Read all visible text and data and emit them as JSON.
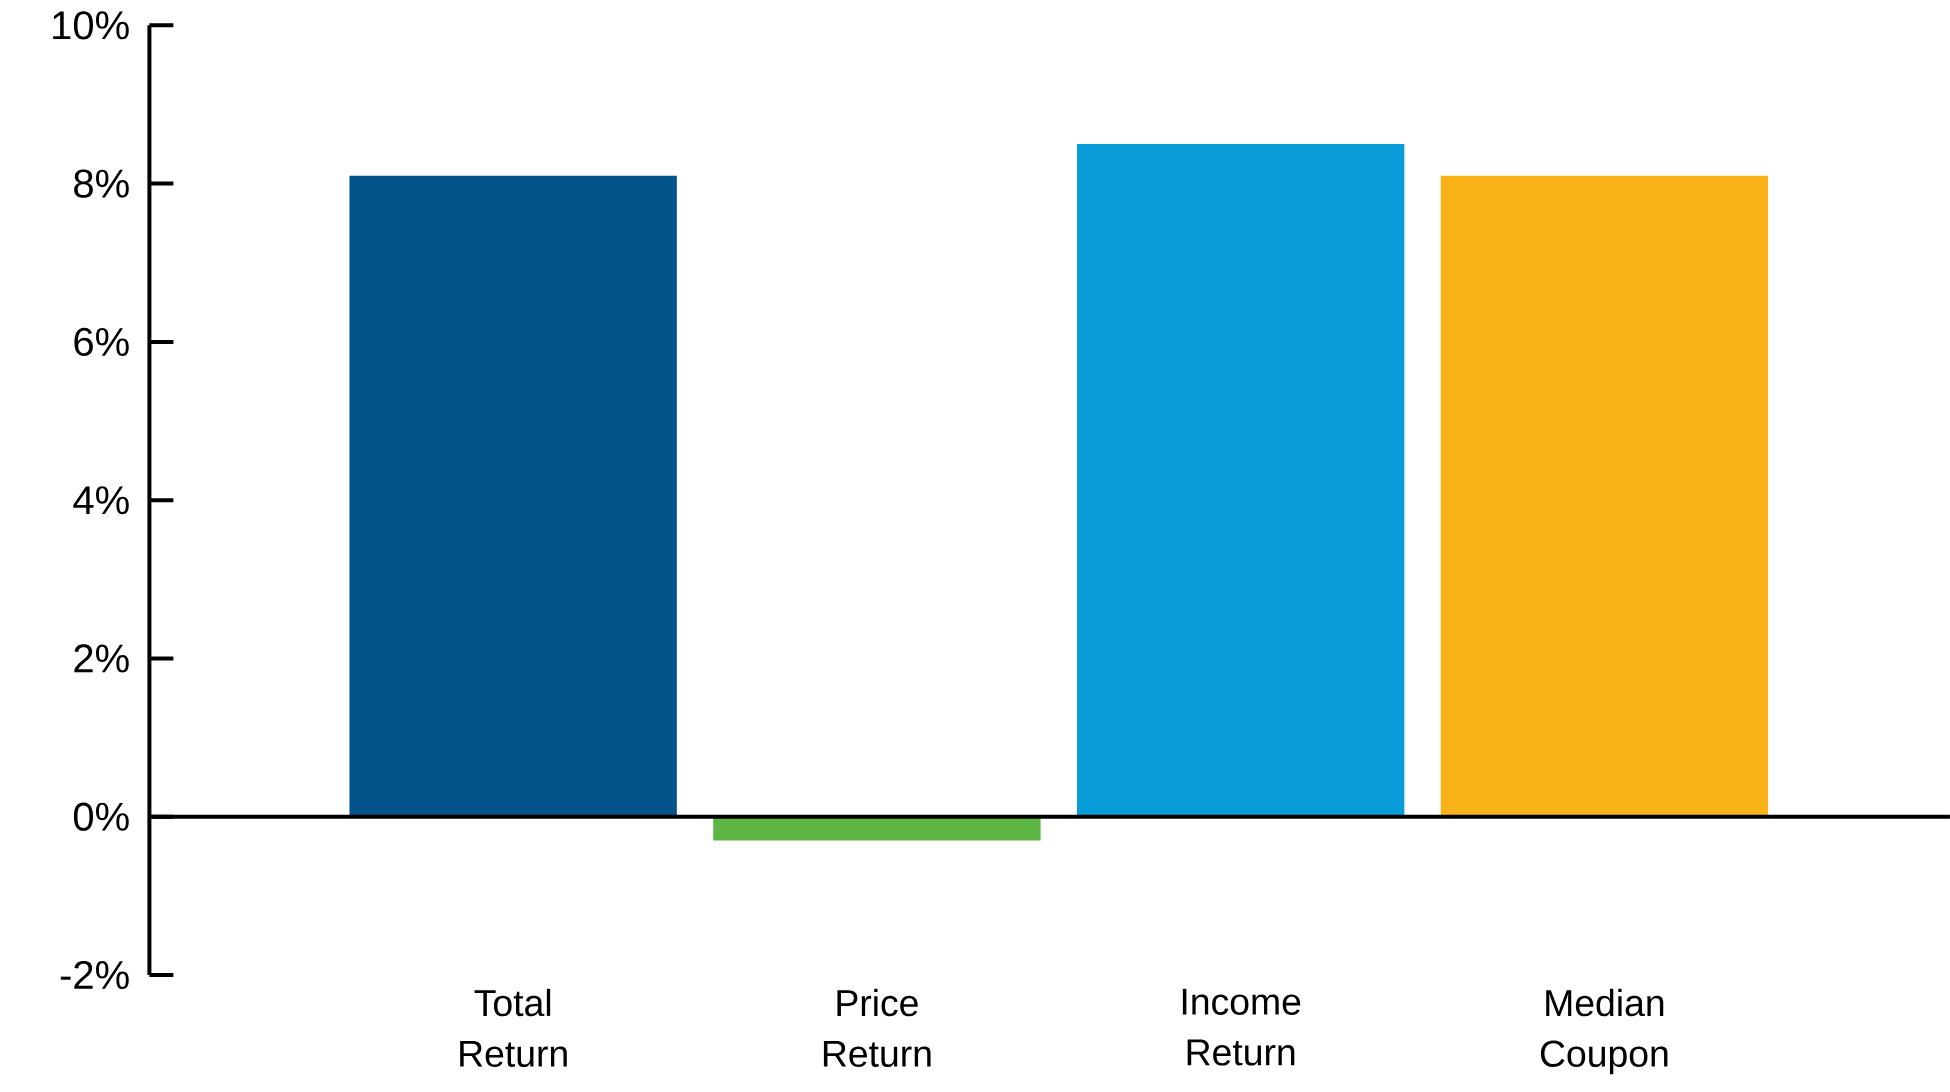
{
  "chart_data": {
    "type": "bar",
    "categories": [
      "Total Return",
      "Price Return",
      "Income Return",
      "Median Coupon"
    ],
    "values": [
      8.1,
      -0.3,
      8.5,
      8.1
    ],
    "colors": [
      "#02538a",
      "#5db643",
      "#089cd9",
      "#f9b319"
    ],
    "ylim": [
      -2,
      10
    ],
    "yticks": [
      {
        "value": -2,
        "label": "-2%"
      },
      {
        "value": 0,
        "label": "0%"
      },
      {
        "value": 2,
        "label": "2%"
      },
      {
        "value": 4,
        "label": "4%"
      },
      {
        "value": 6,
        "label": "6%"
      },
      {
        "value": 8,
        "label": "8%"
      },
      {
        "value": 10,
        "label": "10%"
      }
    ],
    "ref_lines": [
      {
        "axis": "y",
        "value": 0
      }
    ],
    "grid": false
  }
}
